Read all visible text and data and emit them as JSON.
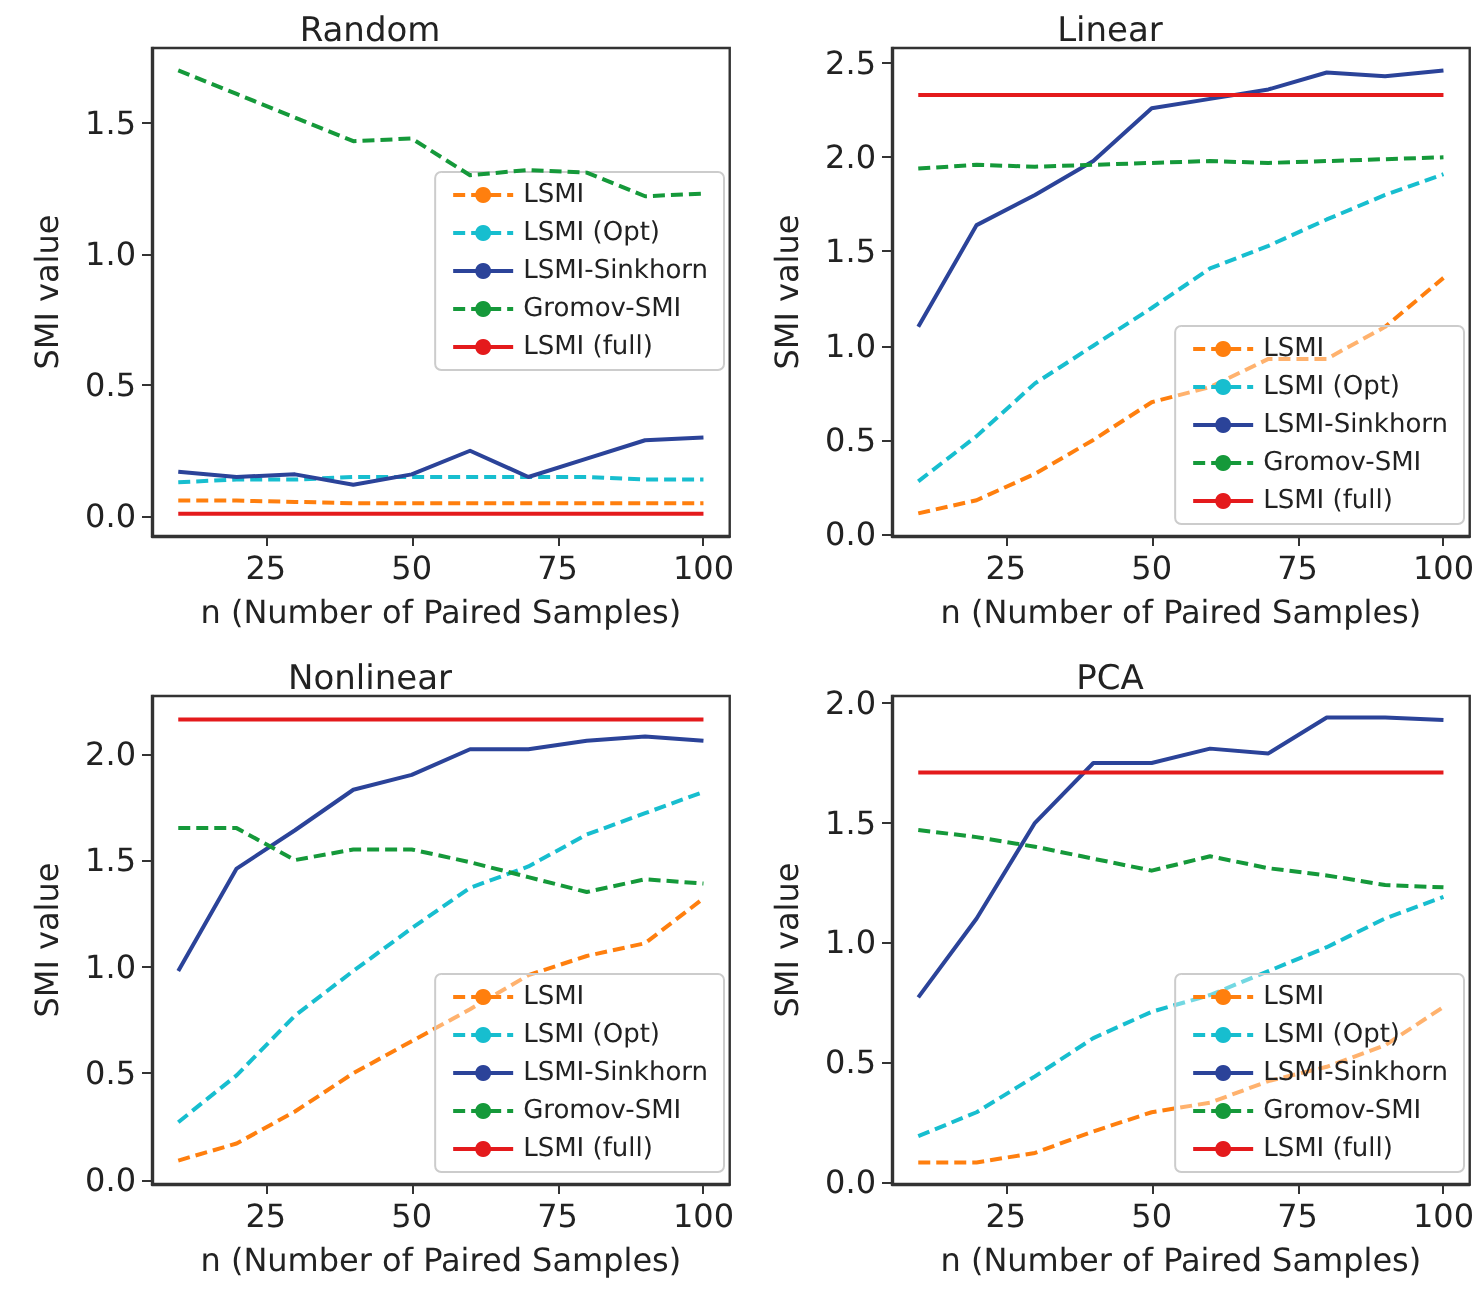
{
  "chart_data": [
    {
      "type": "line",
      "title": "Random",
      "xlabel": "n (Number of Paired Samples)",
      "ylabel": "SMI value",
      "x": [
        10,
        20,
        30,
        40,
        50,
        60,
        70,
        80,
        90,
        100
      ],
      "xlim": [
        5.5,
        104.5
      ],
      "xticks": [
        25,
        50,
        75,
        100
      ],
      "ylim": [
        -0.075,
        1.785
      ],
      "yticks": [
        {
          "value": 0,
          "label": "0.0"
        },
        {
          "value": 0.5,
          "label": "0.5"
        },
        {
          "value": 1,
          "label": "1.0"
        },
        {
          "value": 1.5,
          "label": "1.5"
        }
      ],
      "legend": "right",
      "series": [
        {
          "name": "LSMI",
          "color": "#ff7f0e",
          "line_style": "dashed",
          "values": [
            0.06,
            0.06,
            0.055,
            0.05,
            0.05,
            0.05,
            0.05,
            0.05,
            0.05,
            0.05
          ]
        },
        {
          "name": "LSMI (Opt)",
          "color": "#17becf",
          "line_style": "dashed",
          "values": [
            0.13,
            0.14,
            0.14,
            0.15,
            0.15,
            0.15,
            0.15,
            0.15,
            0.14,
            0.14
          ]
        },
        {
          "name": "LSMI-Sinkhorn",
          "color": "#2b4399",
          "line_style": "solid",
          "values": [
            0.17,
            0.15,
            0.16,
            0.12,
            0.16,
            0.25,
            0.15,
            0.22,
            0.29,
            0.3
          ]
        },
        {
          "name": "Gromov-SMI",
          "color": "#15993a",
          "line_style": "dashed",
          "values": [
            1.7,
            1.61,
            1.52,
            1.43,
            1.44,
            1.3,
            1.32,
            1.31,
            1.22,
            1.23
          ]
        },
        {
          "name": "LSMI (full)",
          "color": "#e41a1c",
          "line_style": "solid",
          "values": [
            0.01,
            0.01,
            0.01,
            0.01,
            0.01,
            0.01,
            0.01,
            0.01,
            0.01,
            0.01
          ]
        }
      ]
    },
    {
      "type": "line",
      "title": "Linear",
      "xlabel": "n (Number of Paired Samples)",
      "ylabel": "SMI value",
      "x": [
        10,
        20,
        30,
        40,
        50,
        60,
        70,
        80,
        90,
        100
      ],
      "xlim": [
        5.5,
        104.5
      ],
      "xticks": [
        25,
        50,
        75,
        100
      ],
      "ylim": [
        -0.01,
        2.58
      ],
      "yticks": [
        {
          "value": 0,
          "label": "0.0"
        },
        {
          "value": 0.5,
          "label": "0.5"
        },
        {
          "value": 1,
          "label": "1.0"
        },
        {
          "value": 1.5,
          "label": "1.5"
        },
        {
          "value": 2,
          "label": "2.0"
        },
        {
          "value": 2.5,
          "label": "2.5"
        }
      ],
      "legend": "bottom right",
      "series": [
        {
          "name": "LSMI",
          "color": "#ff7f0e",
          "line_style": "dashed",
          "values": [
            0.11,
            0.18,
            0.32,
            0.5,
            0.7,
            0.78,
            0.93,
            0.93,
            1.1,
            1.36
          ]
        },
        {
          "name": "LSMI (Opt)",
          "color": "#17becf",
          "line_style": "dashed",
          "values": [
            0.28,
            0.52,
            0.8,
            1.0,
            1.2,
            1.41,
            1.53,
            1.67,
            1.8,
            1.91
          ]
        },
        {
          "name": "LSMI-Sinkhorn",
          "color": "#2b4399",
          "line_style": "solid",
          "values": [
            1.1,
            1.64,
            1.8,
            1.98,
            2.26,
            2.31,
            2.36,
            2.45,
            2.43,
            2.46
          ]
        },
        {
          "name": "Gromov-SMI",
          "color": "#15993a",
          "line_style": "dashed",
          "values": [
            1.94,
            1.96,
            1.95,
            1.96,
            1.97,
            1.98,
            1.97,
            1.98,
            1.99,
            2.0
          ]
        },
        {
          "name": "LSMI (full)",
          "color": "#e41a1c",
          "line_style": "solid",
          "values": [
            2.33,
            2.33,
            2.33,
            2.33,
            2.33,
            2.33,
            2.33,
            2.33,
            2.33,
            2.33
          ]
        }
      ]
    },
    {
      "type": "line",
      "title": "Nonlinear",
      "xlabel": "n (Number of Paired Samples)",
      "ylabel": "SMI value",
      "x": [
        10,
        20,
        30,
        40,
        50,
        60,
        70,
        80,
        90,
        100
      ],
      "xlim": [
        5.5,
        104.5
      ],
      "xticks": [
        25,
        50,
        75,
        100
      ],
      "ylim": [
        -0.02,
        2.27
      ],
      "yticks": [
        {
          "value": 0,
          "label": "0.0"
        },
        {
          "value": 0.5,
          "label": "0.5"
        },
        {
          "value": 1,
          "label": "1.0"
        },
        {
          "value": 1.5,
          "label": "1.5"
        },
        {
          "value": 2,
          "label": "2.0"
        }
      ],
      "legend": "bottom right",
      "series": [
        {
          "name": "LSMI",
          "color": "#ff7f0e",
          "line_style": "dashed",
          "values": [
            0.09,
            0.17,
            0.32,
            0.5,
            0.65,
            0.8,
            0.96,
            1.05,
            1.11,
            1.32
          ]
        },
        {
          "name": "LSMI (Opt)",
          "color": "#17becf",
          "line_style": "dashed",
          "values": [
            0.27,
            0.49,
            0.77,
            0.98,
            1.18,
            1.37,
            1.47,
            1.62,
            1.72,
            1.82
          ]
        },
        {
          "name": "LSMI-Sinkhorn",
          "color": "#2b4399",
          "line_style": "solid",
          "values": [
            0.98,
            1.46,
            1.64,
            1.83,
            1.9,
            2.02,
            2.02,
            2.06,
            2.08,
            2.06
          ]
        },
        {
          "name": "Gromov-SMI",
          "color": "#15993a",
          "line_style": "dashed",
          "values": [
            1.65,
            1.65,
            1.5,
            1.55,
            1.55,
            1.49,
            1.42,
            1.35,
            1.41,
            1.39
          ]
        },
        {
          "name": "LSMI (full)",
          "color": "#e41a1c",
          "line_style": "solid",
          "values": [
            2.16,
            2.16,
            2.16,
            2.16,
            2.16,
            2.16,
            2.16,
            2.16,
            2.16,
            2.16
          ]
        }
      ]
    },
    {
      "type": "line",
      "title": "PCA",
      "xlabel": "n (Number of Paired Samples)",
      "ylabel": "SMI value",
      "x": [
        10,
        20,
        30,
        40,
        50,
        60,
        70,
        80,
        90,
        100
      ],
      "xlim": [
        5.5,
        104.5
      ],
      "xticks": [
        25,
        50,
        75,
        100
      ],
      "ylim": [
        -0.01,
        2.03
      ],
      "yticks": [
        {
          "value": 0,
          "label": "0.0"
        },
        {
          "value": 0.5,
          "label": "0.5"
        },
        {
          "value": 1,
          "label": "1.0"
        },
        {
          "value": 1.5,
          "label": "1.5"
        },
        {
          "value": 2,
          "label": "2.0"
        }
      ],
      "legend": "bottom right",
      "series": [
        {
          "name": "LSMI",
          "color": "#ff7f0e",
          "line_style": "dashed",
          "values": [
            0.08,
            0.08,
            0.12,
            0.21,
            0.29,
            0.33,
            0.42,
            0.48,
            0.57,
            0.73
          ]
        },
        {
          "name": "LSMI (Opt)",
          "color": "#17becf",
          "line_style": "dashed",
          "values": [
            0.19,
            0.29,
            0.44,
            0.6,
            0.71,
            0.78,
            0.88,
            0.98,
            1.1,
            1.19
          ]
        },
        {
          "name": "LSMI-Sinkhorn",
          "color": "#2b4399",
          "line_style": "solid",
          "values": [
            0.77,
            1.1,
            1.5,
            1.75,
            1.75,
            1.81,
            1.79,
            1.94,
            1.94,
            1.93
          ]
        },
        {
          "name": "Gromov-SMI",
          "color": "#15993a",
          "line_style": "dashed",
          "values": [
            1.47,
            1.44,
            1.4,
            1.35,
            1.3,
            1.36,
            1.31,
            1.28,
            1.24,
            1.23
          ]
        },
        {
          "name": "LSMI (full)",
          "color": "#e41a1c",
          "line_style": "solid",
          "values": [
            1.71,
            1.71,
            1.71,
            1.71,
            1.71,
            1.71,
            1.71,
            1.71,
            1.71,
            1.71
          ]
        }
      ]
    }
  ]
}
